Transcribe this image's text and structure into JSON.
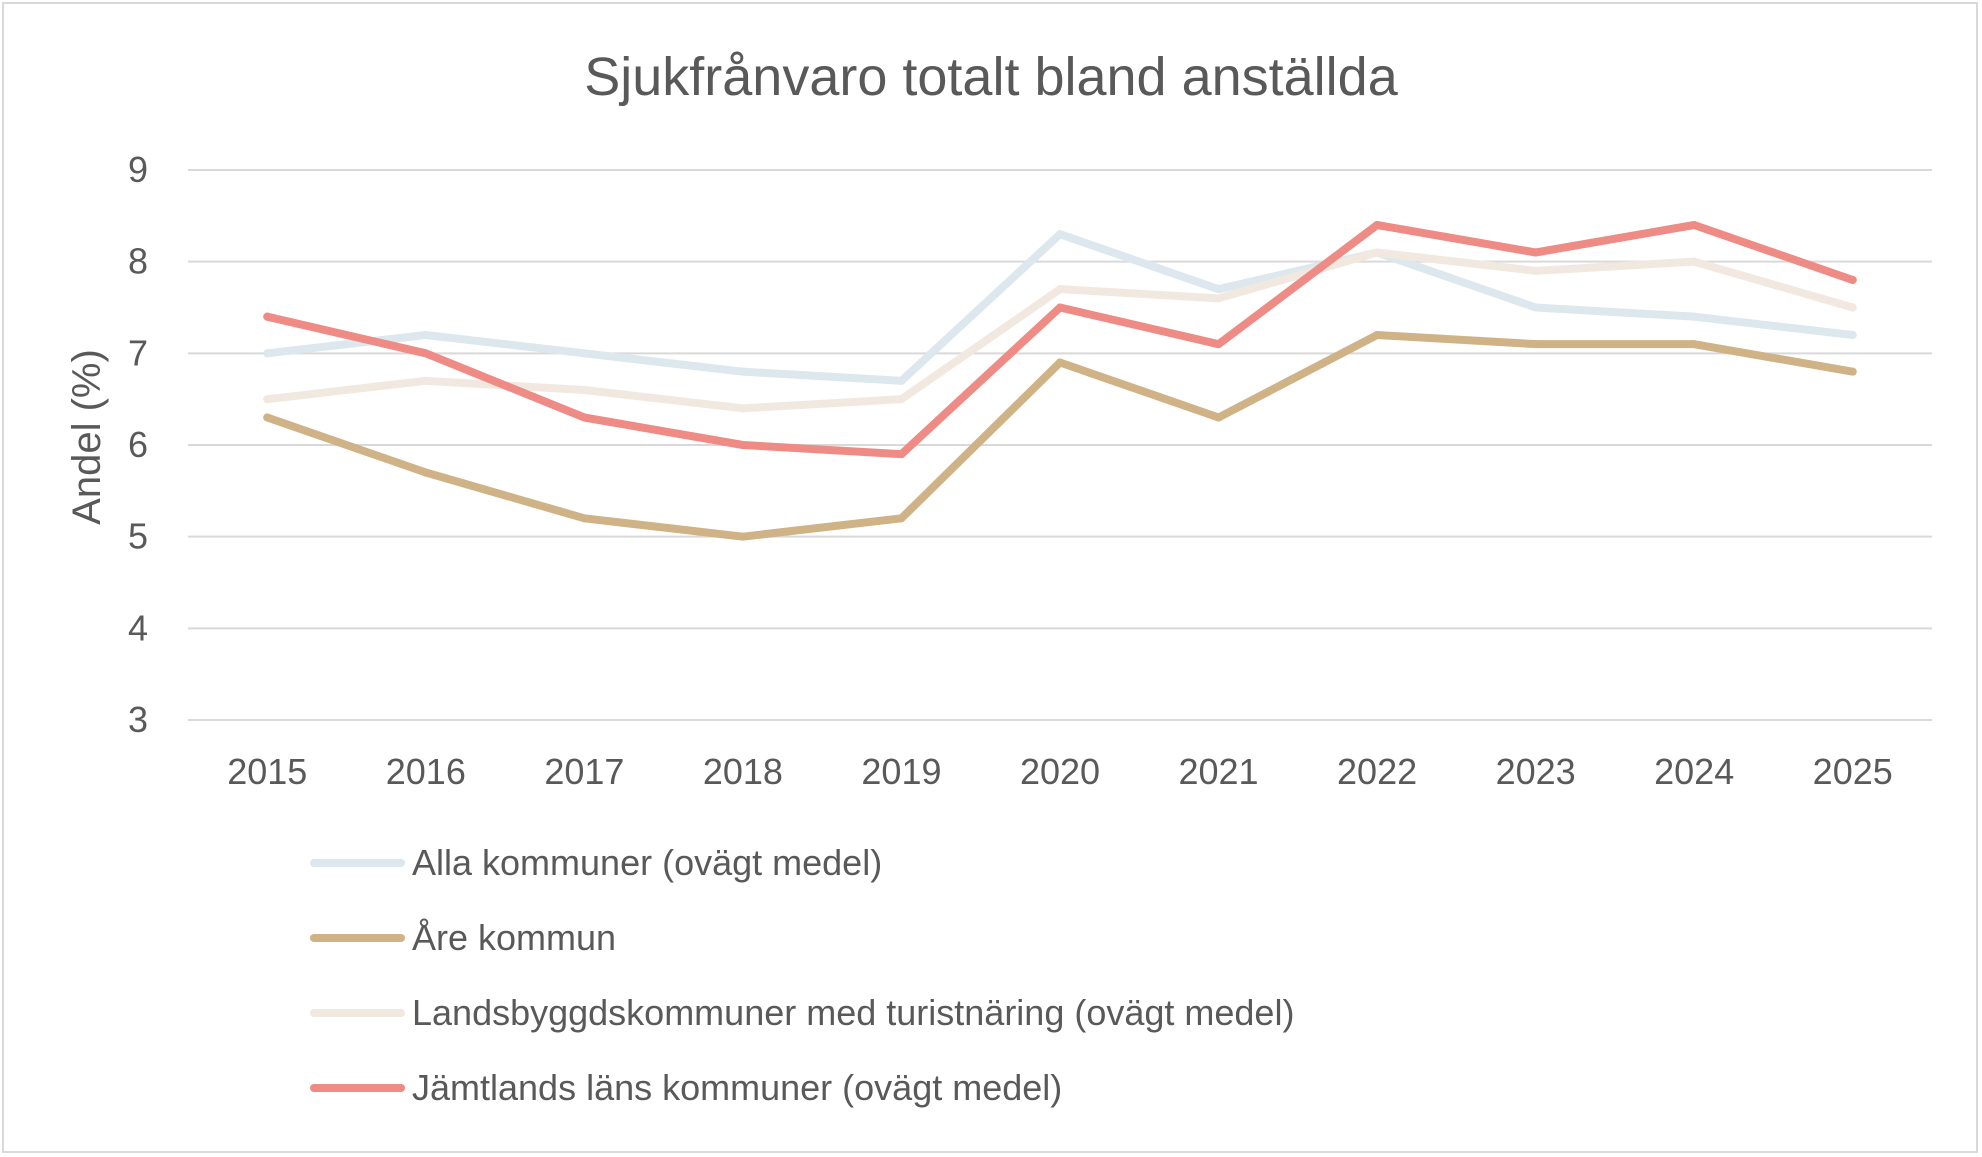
{
  "chart_data": {
    "type": "line",
    "title": "Sjukfrånvaro totalt bland anställda",
    "xlabel": "",
    "ylabel": "Andel (%)",
    "ylim": [
      3,
      9
    ],
    "yticks": [
      "3",
      "4",
      "5",
      "6",
      "7",
      "8",
      "9"
    ],
    "grid": true,
    "legend_position": "bottom",
    "categories": [
      "2015",
      "2016",
      "2017",
      "2018",
      "2019",
      "2020",
      "2021",
      "2022",
      "2023",
      "2024",
      "2025"
    ],
    "series": [
      {
        "name": "Alla kommuner (ovägt medel)",
        "color": "#dde7ee",
        "values": [
          7.0,
          7.2,
          7.0,
          6.8,
          6.7,
          8.3,
          7.7,
          8.1,
          7.5,
          7.4,
          7.2
        ]
      },
      {
        "name": "Åre kommun",
        "color": "#cfb387",
        "values": [
          6.3,
          5.7,
          5.2,
          5.0,
          5.2,
          6.9,
          6.3,
          7.2,
          7.1,
          7.1,
          6.8
        ]
      },
      {
        "name": "Landsbyggdskommuner med turistnäring (ovägt medel)",
        "color": "#f1e9df",
        "values": [
          6.5,
          6.7,
          6.6,
          6.4,
          6.5,
          7.7,
          7.6,
          8.1,
          7.9,
          8.0,
          7.5
        ]
      },
      {
        "name": "Jämtlands läns kommuner (ovägt medel)",
        "color": "#ed8b84",
        "values": [
          7.4,
          7.0,
          6.3,
          6.0,
          5.9,
          7.5,
          7.1,
          8.4,
          8.1,
          8.4,
          7.8
        ]
      }
    ]
  }
}
